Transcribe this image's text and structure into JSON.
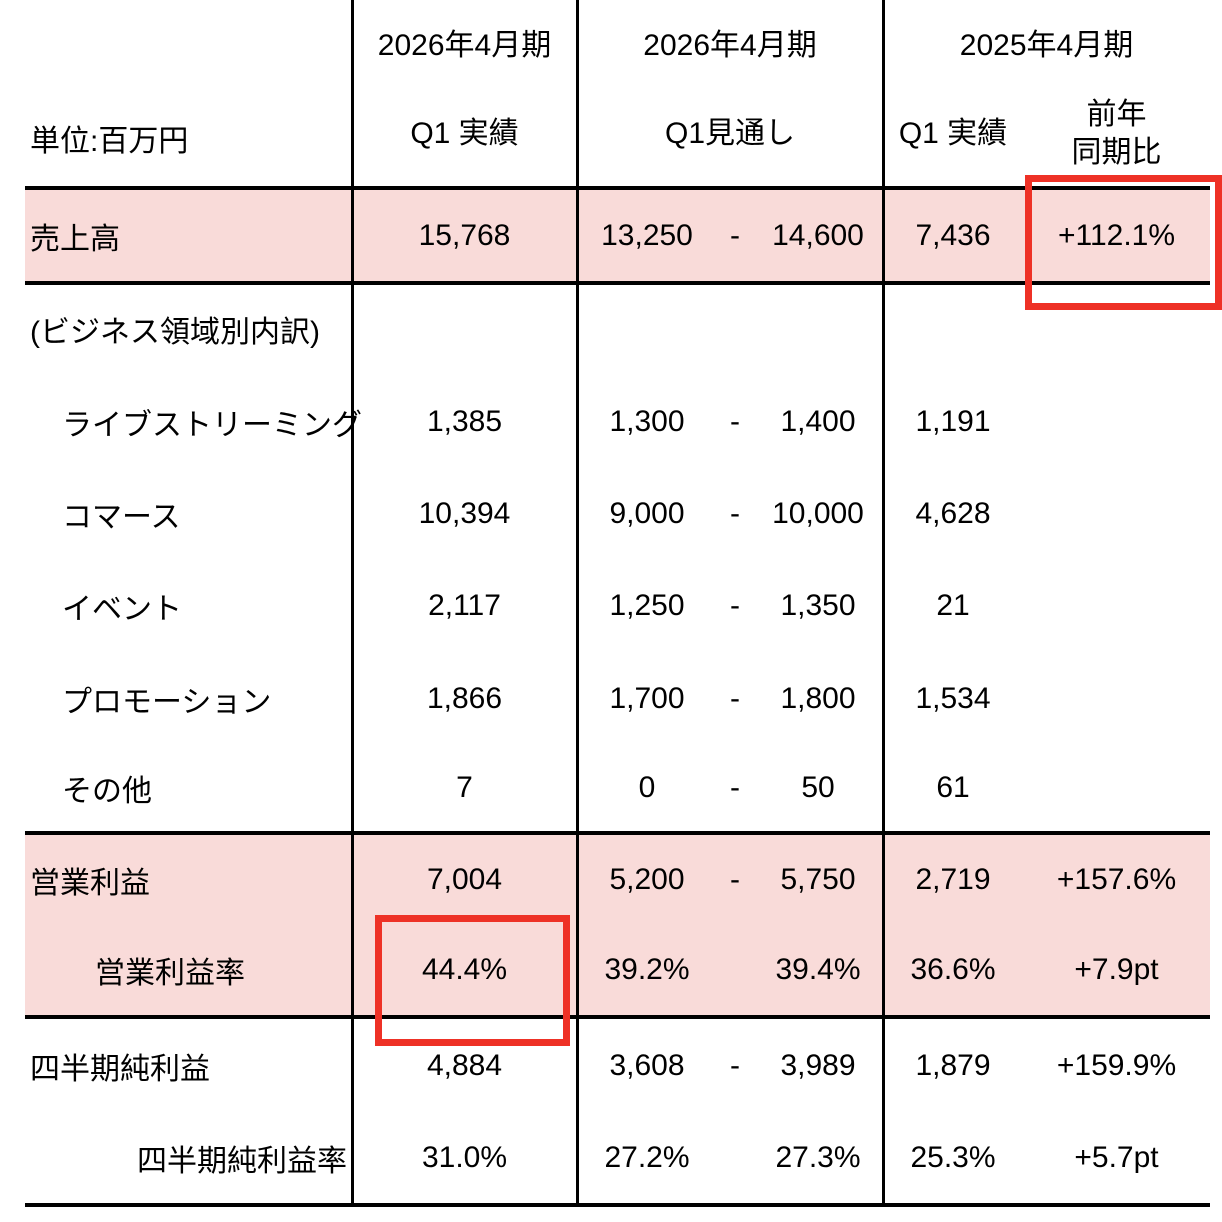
{
  "table": {
    "unit_label": "単位:百万円",
    "header": {
      "actual_2026": {
        "period": "2026年4月期",
        "sub": "Q1 実績"
      },
      "forecast_2026": {
        "period": "2026年4月期",
        "sub": "Q1見通し"
      },
      "prior_2025": {
        "period": "2025年4月期",
        "sub": "Q1 実績",
        "yoy_line1": "前年",
        "yoy_line2": "同期比"
      }
    },
    "rows": [
      {
        "label": "売上高",
        "indent": 0,
        "actual": "15,768",
        "forecast_low": "13,250",
        "forecast_dash": "-",
        "forecast_high": "14,600",
        "prior": "7,436",
        "yoy": "+112.1%",
        "highlight": true
      },
      {
        "label": "(ビジネス領域別内訳)",
        "indent": 0,
        "actual": "",
        "forecast_low": "",
        "forecast_dash": "",
        "forecast_high": "",
        "prior": "",
        "yoy": "",
        "highlight": false
      },
      {
        "label": "ライブストリーミング",
        "indent": 1,
        "actual": "1,385",
        "forecast_low": "1,300",
        "forecast_dash": "-",
        "forecast_high": "1,400",
        "prior": "1,191",
        "yoy": "",
        "highlight": false
      },
      {
        "label": "コマース",
        "indent": 1,
        "actual": "10,394",
        "forecast_low": "9,000",
        "forecast_dash": "-",
        "forecast_high": "10,000",
        "prior": "4,628",
        "yoy": "",
        "highlight": false
      },
      {
        "label": "イベント",
        "indent": 1,
        "actual": "2,117",
        "forecast_low": "1,250",
        "forecast_dash": "-",
        "forecast_high": "1,350",
        "prior": "21",
        "yoy": "",
        "highlight": false
      },
      {
        "label": "プロモーション",
        "indent": 1,
        "actual": "1,866",
        "forecast_low": "1,700",
        "forecast_dash": "-",
        "forecast_high": "1,800",
        "prior": "1,534",
        "yoy": "",
        "highlight": false
      },
      {
        "label": "その他",
        "indent": 1,
        "actual": "7",
        "forecast_low": "0",
        "forecast_dash": "-",
        "forecast_high": "50",
        "prior": "61",
        "yoy": "",
        "highlight": false
      },
      {
        "label": "営業利益",
        "indent": 0,
        "actual": "7,004",
        "forecast_low": "5,200",
        "forecast_dash": "-",
        "forecast_high": "5,750",
        "prior": "2,719",
        "yoy": "+157.6%",
        "highlight": true
      },
      {
        "label": "営業利益率",
        "indent": 2,
        "actual": "44.4%",
        "forecast_low": "39.2%",
        "forecast_dash": "",
        "forecast_high": "39.4%",
        "prior": "36.6%",
        "yoy": "+7.9pt",
        "highlight": true
      },
      {
        "label": "四半期純利益",
        "indent": 0,
        "actual": "4,884",
        "forecast_low": "3,608",
        "forecast_dash": "-",
        "forecast_high": "3,989",
        "prior": "1,879",
        "yoy": "+159.9%",
        "highlight": false
      },
      {
        "label": "四半期純利益率",
        "indent": 3,
        "actual": "31.0%",
        "forecast_low": "27.2%",
        "forecast_dash": "",
        "forecast_high": "27.3%",
        "prior": "25.3%",
        "yoy": "+5.7pt",
        "highlight": false
      }
    ],
    "annotations": [
      {
        "type": "red-box",
        "row": "売上高",
        "column": "前年同期比",
        "value": "+112.1%"
      },
      {
        "type": "red-box",
        "row": "営業利益率",
        "column": "2026年4月期 Q1 実績",
        "value": "44.4%"
      }
    ]
  },
  "colors": {
    "highlight_pink": "#f9dbd9",
    "annotation_red": "#ee3126",
    "grid_black": "#000000"
  }
}
